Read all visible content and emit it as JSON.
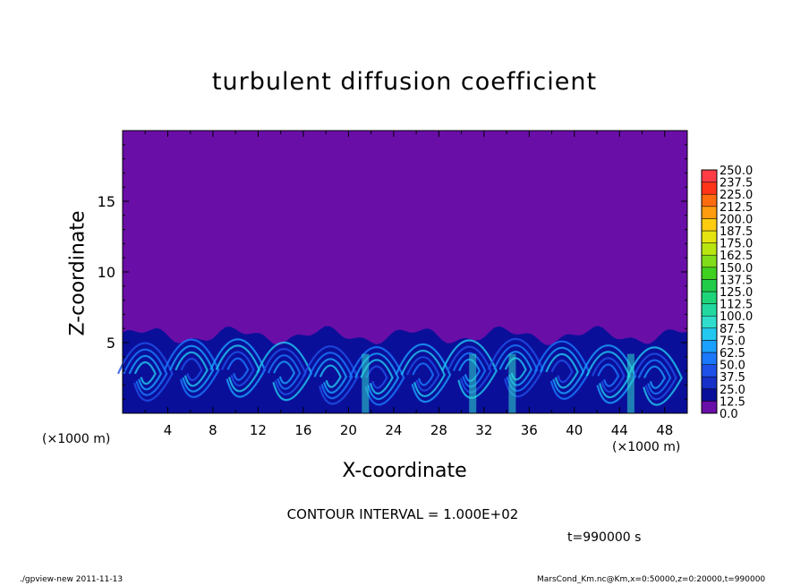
{
  "chart_data": {
    "type": "heatmap",
    "title": "turbulent diffusion coefficient",
    "xlabel": "X-coordinate",
    "ylabel": "Z-coordinate",
    "x_scale_note": "(×1000 m)",
    "x_scale_note_right": "(×1000 m)",
    "xlim": [
      0,
      50
    ],
    "ylim": [
      0,
      20
    ],
    "x_ticks": [
      4,
      8,
      12,
      16,
      20,
      24,
      28,
      32,
      36,
      40,
      44,
      48
    ],
    "y_ticks": [
      5,
      10,
      15
    ],
    "background_value": 0.0,
    "turbulent_layer_top_km": 5.5,
    "colorbar": {
      "levels": [
        "0.0",
        "12.5",
        "25.0",
        "37.5",
        "50.0",
        "62.5",
        "75.0",
        "87.5",
        "100.0",
        "112.5",
        "125.0",
        "137.5",
        "150.0",
        "162.5",
        "175.0",
        "187.5",
        "200.0",
        "212.5",
        "225.0",
        "237.5",
        "250.0"
      ],
      "colors": [
        "#6a0ea8",
        "#0a0f9a",
        "#1730c8",
        "#1f50e8",
        "#1a78ff",
        "#1aa0ff",
        "#22c8f0",
        "#30dccc",
        "#22d8a0",
        "#1ed478",
        "#20cc48",
        "#40d020",
        "#80dc18",
        "#b8e410",
        "#e4e410",
        "#ffcc10",
        "#ff9c10",
        "#ff6c10",
        "#ff3418",
        "#ff3c46",
        "#ff8690"
      ]
    },
    "contour_interval": "CONTOUR INTERVAL = 1.000E+02",
    "time": "t=990000 s"
  },
  "footer": {
    "left": "./gpview-new  2011-11-13",
    "right": "MarsCond_Km.nc@Km,x=0:50000,z=0:20000,t=990000"
  }
}
